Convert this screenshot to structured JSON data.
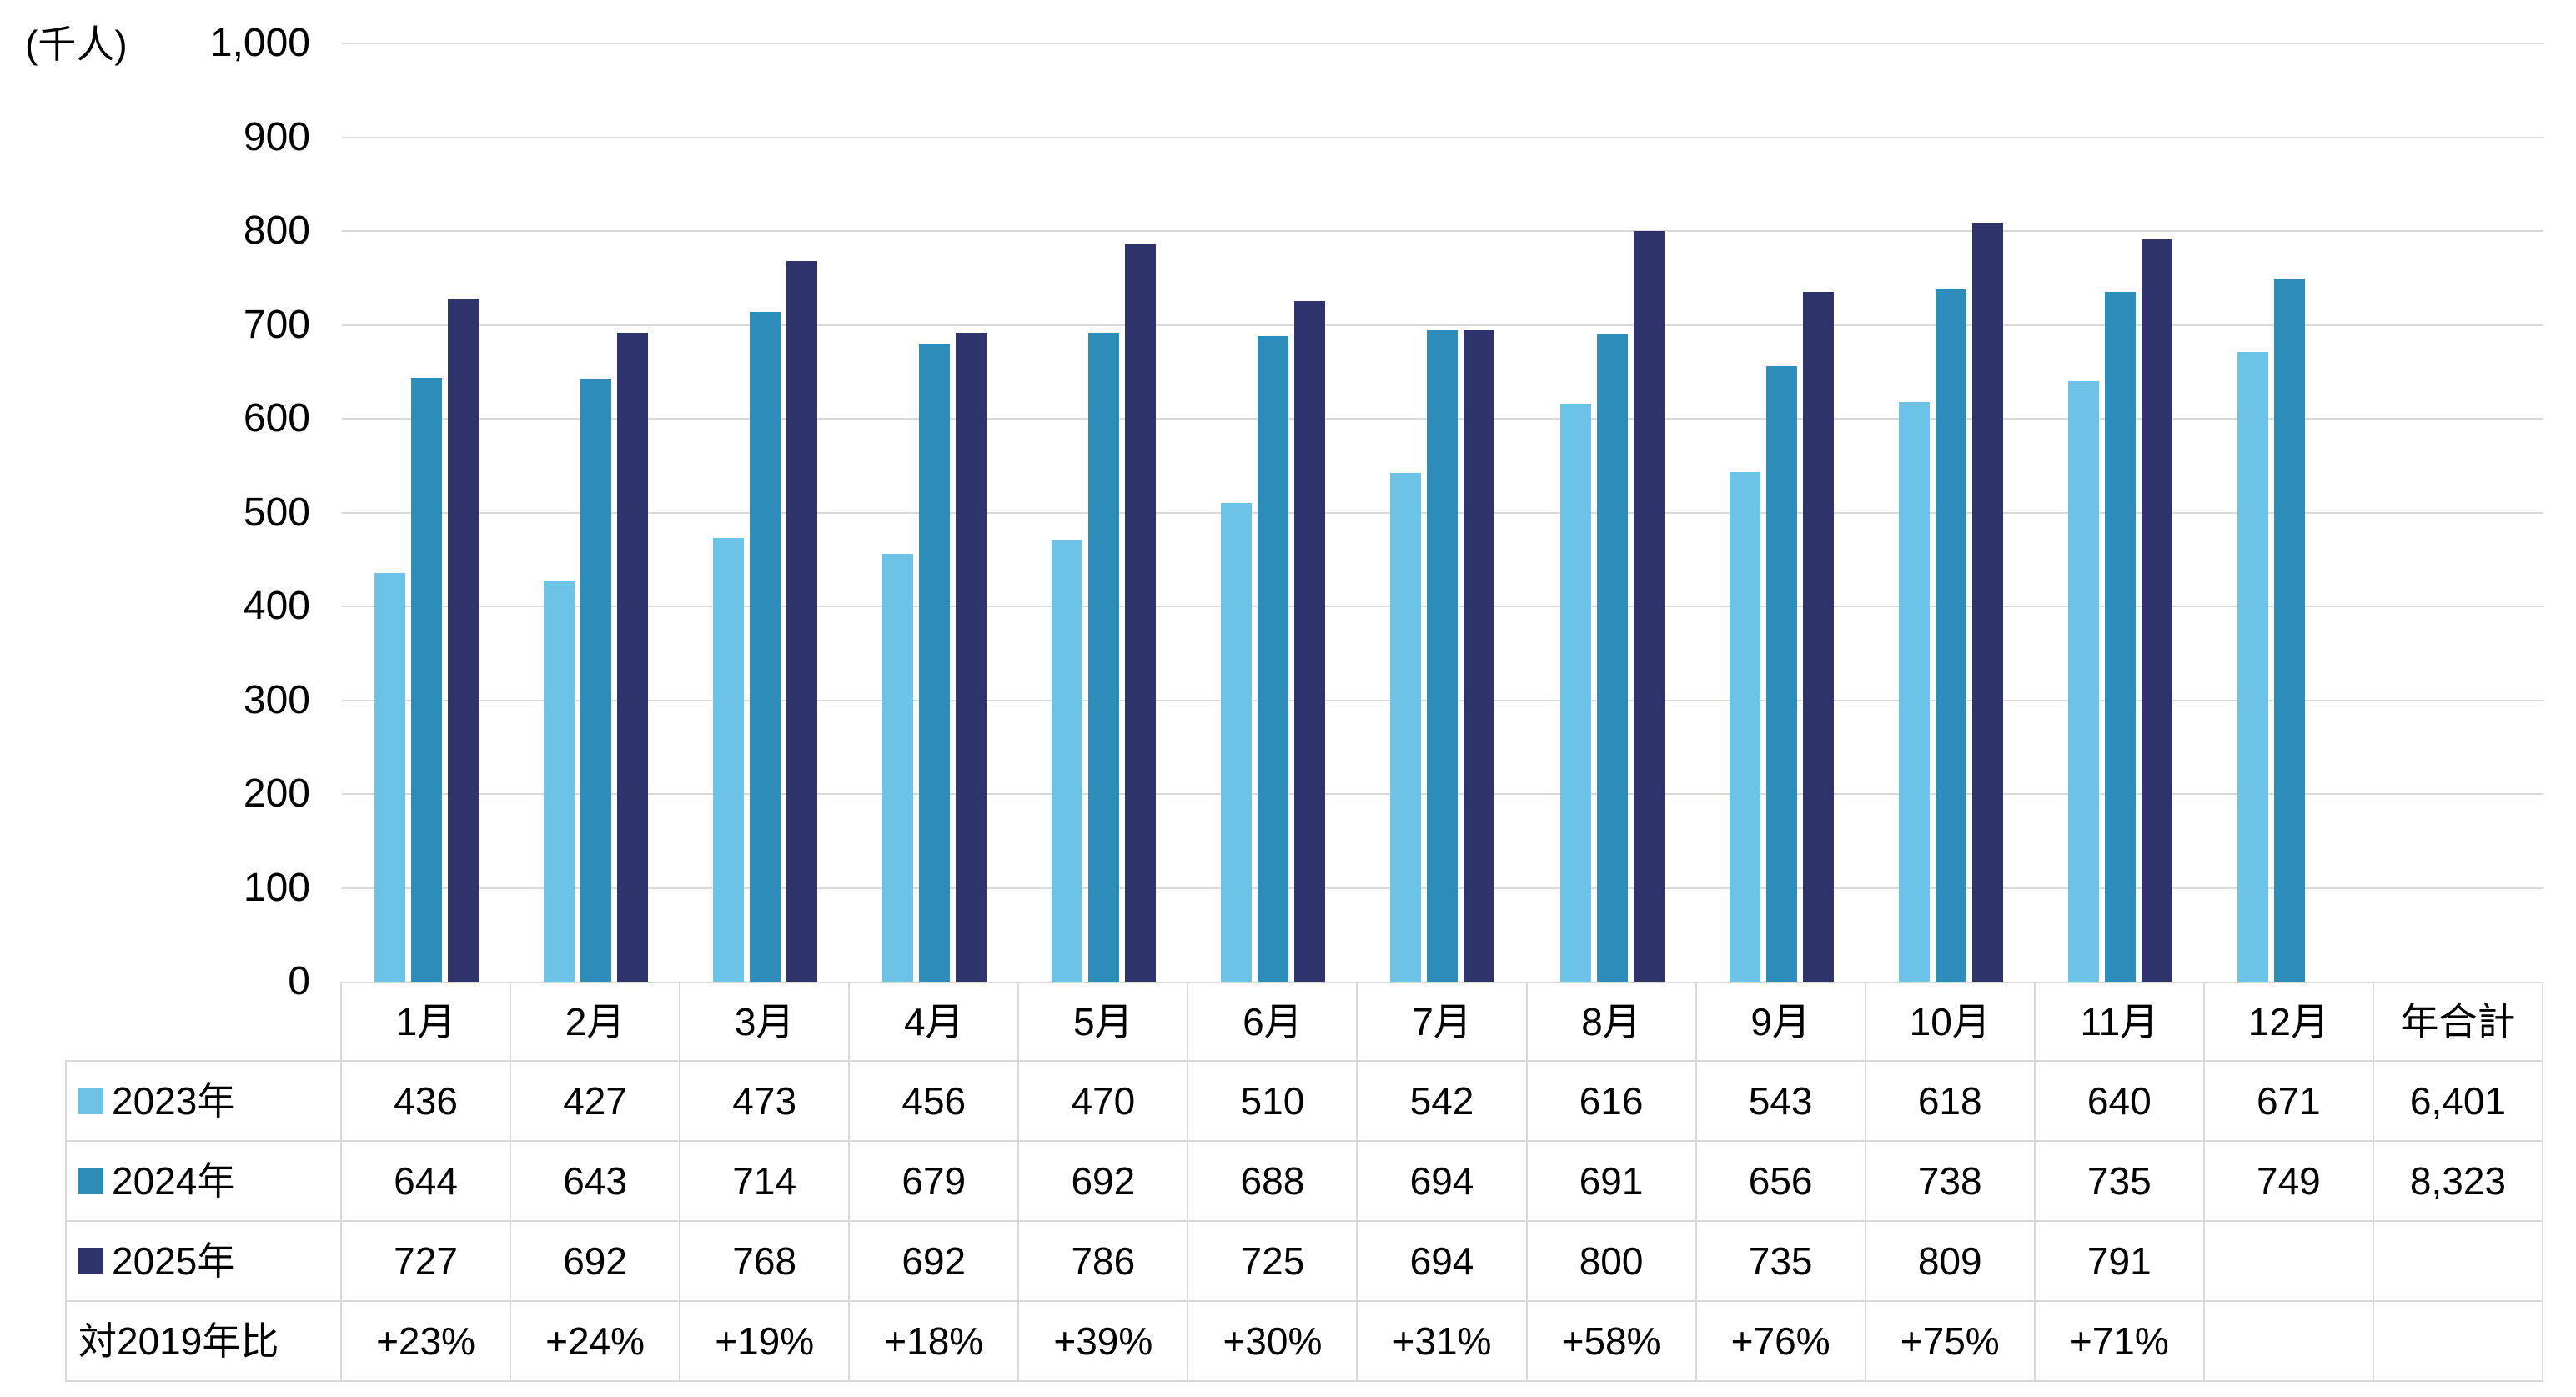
{
  "chart": {
    "unit_label": "(千人)",
    "y_tick_labels": [
      "0",
      "100",
      "200",
      "300",
      "400",
      "500",
      "600",
      "700",
      "800",
      "900",
      "1,000"
    ],
    "gridline_color": "#d9d9d9",
    "border_color": "#d9d9d9",
    "text_color": "#000000"
  },
  "chart_data": {
    "type": "bar",
    "title": "",
    "ylabel": "(千人)",
    "xlabel": "",
    "ylim": [
      0,
      1000
    ],
    "y_step": 100,
    "grid": true,
    "legend_position": "table-row-headers",
    "categories": [
      "1月",
      "2月",
      "3月",
      "4月",
      "5月",
      "6月",
      "7月",
      "8月",
      "9月",
      "10月",
      "11月",
      "12月"
    ],
    "series": [
      {
        "name": "2023年",
        "color": "#6cc3e8",
        "values": [
          436,
          427,
          473,
          456,
          470,
          510,
          542,
          616,
          543,
          618,
          640,
          671
        ]
      },
      {
        "name": "2024年",
        "color": "#2e8cba",
        "values": [
          644,
          643,
          714,
          679,
          692,
          688,
          694,
          691,
          656,
          738,
          735,
          749
        ]
      },
      {
        "name": "2025年",
        "color": "#2f336b",
        "values": [
          727,
          692,
          768,
          692,
          786,
          725,
          694,
          800,
          735,
          809,
          791,
          null
        ]
      }
    ]
  },
  "table": {
    "columns": [
      "",
      "1月",
      "2月",
      "3月",
      "4月",
      "5月",
      "6月",
      "7月",
      "8月",
      "9月",
      "10月",
      "11月",
      "12月",
      "年合計"
    ],
    "rows": [
      {
        "label": "2023年",
        "legend_color": "#6cc3e8",
        "cells": [
          "436",
          "427",
          "473",
          "456",
          "470",
          "510",
          "542",
          "616",
          "543",
          "618",
          "640",
          "671",
          "6,401"
        ]
      },
      {
        "label": "2024年",
        "legend_color": "#2e8cba",
        "cells": [
          "644",
          "643",
          "714",
          "679",
          "692",
          "688",
          "694",
          "691",
          "656",
          "738",
          "735",
          "749",
          "8,323"
        ]
      },
      {
        "label": "2025年",
        "legend_color": "#2f336b",
        "cells": [
          "727",
          "692",
          "768",
          "692",
          "786",
          "725",
          "694",
          "800",
          "735",
          "809",
          "791",
          "",
          ""
        ]
      },
      {
        "label": "対2019年比",
        "legend_color": null,
        "cells": [
          "+23%",
          "+24%",
          "+19%",
          "+18%",
          "+39%",
          "+30%",
          "+31%",
          "+58%",
          "+76%",
          "+75%",
          "+71%",
          "",
          ""
        ]
      }
    ]
  }
}
